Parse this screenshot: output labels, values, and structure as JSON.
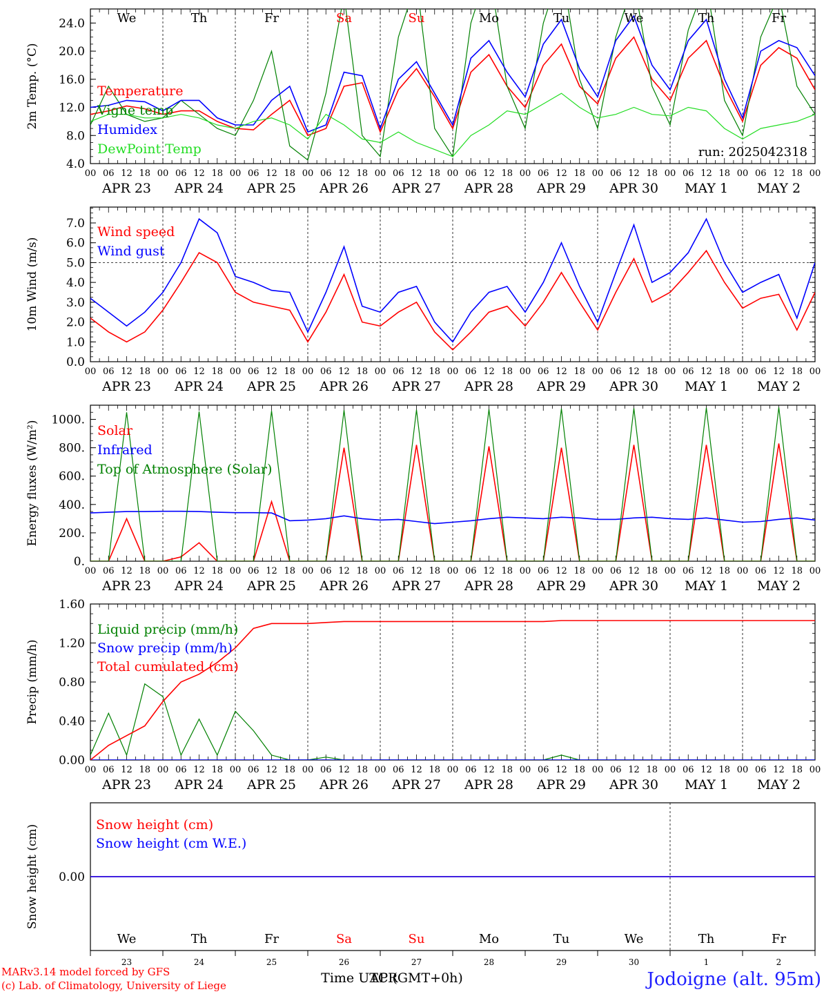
{
  "run_label": "run: 2025042318",
  "days_top": [
    "We",
    "Th",
    "Fr",
    "Sa",
    "Su",
    "Mo",
    "Tu",
    "We",
    "Th",
    "Fr"
  ],
  "day_colors": [
    "#000000",
    "#000000",
    "#000000",
    "#ff0000",
    "#ff0000",
    "#000000",
    "#000000",
    "#000000",
    "#000000",
    "#000000"
  ],
  "hour_ticks": [
    "00",
    "06",
    "12",
    "18"
  ],
  "hour_end": "00",
  "date_labels": [
    "APR 23",
    "APR 24",
    "APR 25",
    "APR 26",
    "APR 27",
    "APR 28",
    "APR 29",
    "APR 30",
    "MAY  1",
    "MAY  2"
  ],
  "snow_day_numbers": [
    "23",
    "24",
    "25",
    "26",
    "27",
    "28",
    "29",
    "30",
    "1",
    "2"
  ],
  "x_axis_label": "Time UTC (GMT+0h)",
  "x_axis_overlay": "APR",
  "footer": {
    "line1": "MARv3.14 model forced by GFS",
    "line2": "(c) Lab. of Climatology, University of Liege",
    "location": "Jodoigne (alt. 95m)"
  },
  "colors": {
    "red": "#ff0000",
    "blue": "#0000ff",
    "green": "#008000",
    "lime": "#22dd22"
  },
  "chart_data": [
    {
      "type": "line",
      "ylabel": "2m Temp. (°C)",
      "ylim": [
        4,
        26
      ],
      "yticks": [
        "4.0",
        "8.0",
        "12.0",
        "16.0",
        "20.0",
        "24.0"
      ],
      "x": [
        0,
        6,
        12,
        18,
        24,
        30,
        36,
        42,
        48,
        54,
        60,
        66,
        72,
        78,
        84,
        90,
        96,
        102,
        108,
        114,
        120,
        126,
        132,
        138,
        144,
        150,
        156,
        162,
        168,
        174,
        180,
        186,
        192,
        198,
        204,
        210,
        216,
        222,
        228,
        234,
        240
      ],
      "series": [
        {
          "name": "Temperature",
          "color": "#ff0000",
          "values": [
            11.0,
            11.5,
            12.2,
            11.8,
            11.0,
            11.5,
            11.5,
            10.0,
            9.0,
            8.8,
            11.0,
            13.0,
            8.0,
            9.0,
            15.0,
            15.5,
            8.5,
            14.5,
            17.5,
            13.5,
            9.0,
            17.0,
            19.5,
            15.0,
            12.0,
            18.0,
            21.0,
            15.0,
            12.5,
            19.0,
            22.0,
            16.0,
            13.0,
            19.0,
            21.5,
            15.0,
            10.0,
            18.0,
            20.5,
            19.0,
            14.5
          ]
        },
        {
          "name": "Vigne temp",
          "color": "#008000",
          "values": [
            9.5,
            15.0,
            11.0,
            10.0,
            10.5,
            13.0,
            11.0,
            9.0,
            8.0,
            13.0,
            20.0,
            6.5,
            4.5,
            14.0,
            28.0,
            8.0,
            5.0,
            22.0,
            30.0,
            9.0,
            5.0,
            24.0,
            32.0,
            15.0,
            9.0,
            24.0,
            32.0,
            16.0,
            9.0,
            22.0,
            30.0,
            15.0,
            9.5,
            23.0,
            30.0,
            13.0,
            8.0,
            22.0,
            28.0,
            15.0,
            11.0
          ]
        },
        {
          "name": "Humidex",
          "color": "#0000ff",
          "values": [
            12.0,
            12.3,
            13.0,
            12.8,
            11.5,
            13.0,
            13.0,
            10.5,
            9.5,
            9.5,
            13.0,
            15.0,
            8.5,
            9.5,
            17.0,
            16.5,
            9.0,
            16.0,
            18.5,
            14.0,
            9.5,
            19.0,
            21.5,
            17.0,
            13.5,
            21.0,
            24.5,
            17.5,
            13.5,
            21.5,
            25.0,
            18.0,
            14.5,
            21.5,
            24.5,
            16.0,
            10.5,
            20.0,
            21.5,
            20.5,
            16.5
          ]
        },
        {
          "name": "DewPoint Temp",
          "color": "#22dd22",
          "values": [
            10.0,
            11.0,
            11.0,
            10.5,
            10.5,
            11.0,
            10.5,
            9.5,
            9.0,
            10.0,
            10.5,
            9.5,
            7.5,
            11.0,
            9.5,
            7.5,
            7.0,
            8.5,
            7.0,
            6.0,
            5.0,
            8.0,
            9.5,
            11.5,
            11.0,
            12.5,
            14.0,
            12.0,
            10.5,
            11.0,
            12.0,
            11.0,
            10.8,
            12.0,
            11.5,
            9.0,
            7.5,
            9.0,
            9.5,
            10.0,
            11.0
          ]
        }
      ]
    },
    {
      "type": "line",
      "ylabel": "10m Wind (m/s)",
      "ylim": [
        0,
        7.8
      ],
      "yticks": [
        "0.0",
        "1.0",
        "2.0",
        "3.0",
        "4.0",
        "5.0",
        "6.0",
        "7.0"
      ],
      "reference_line": 5.0,
      "x": [
        0,
        6,
        12,
        18,
        24,
        30,
        36,
        42,
        48,
        54,
        60,
        66,
        72,
        78,
        84,
        90,
        96,
        102,
        108,
        114,
        120,
        126,
        132,
        138,
        144,
        150,
        156,
        162,
        168,
        174,
        180,
        186,
        192,
        198,
        204,
        210,
        216,
        222,
        228,
        234,
        240
      ],
      "series": [
        {
          "name": "Wind speed",
          "color": "#ff0000",
          "values": [
            2.2,
            1.5,
            1.0,
            1.5,
            2.6,
            4.0,
            5.5,
            5.0,
            3.5,
            3.0,
            2.8,
            2.6,
            1.0,
            2.5,
            4.4,
            2.0,
            1.8,
            2.5,
            3.0,
            1.5,
            0.6,
            1.5,
            2.5,
            2.8,
            1.8,
            3.0,
            4.5,
            3.0,
            1.6,
            3.5,
            5.2,
            3.0,
            3.5,
            4.5,
            5.6,
            4.0,
            2.7,
            3.2,
            3.4,
            1.6,
            3.5
          ]
        },
        {
          "name": "Wind gust",
          "color": "#0000ff",
          "values": [
            3.2,
            2.5,
            1.8,
            2.5,
            3.5,
            5.0,
            7.2,
            6.5,
            4.3,
            4.0,
            3.6,
            3.5,
            1.5,
            3.5,
            5.8,
            2.8,
            2.5,
            3.5,
            3.8,
            2.0,
            1.0,
            2.5,
            3.5,
            3.8,
            2.5,
            4.0,
            6.0,
            3.8,
            2.0,
            4.5,
            6.9,
            4.0,
            4.5,
            5.5,
            7.2,
            5.0,
            3.5,
            4.0,
            4.4,
            2.2,
            5.0
          ]
        }
      ]
    },
    {
      "type": "line",
      "ylabel": "Energy fluxes (W/m²)",
      "ylim": [
        0,
        1100
      ],
      "yticks": [
        "0.",
        "200.",
        "400.",
        "600.",
        "800.",
        "1000."
      ],
      "x": [
        0,
        6,
        12,
        18,
        24,
        30,
        36,
        42,
        48,
        54,
        60,
        66,
        72,
        78,
        84,
        90,
        96,
        102,
        108,
        114,
        120,
        126,
        132,
        138,
        144,
        150,
        156,
        162,
        168,
        174,
        180,
        186,
        192,
        198,
        204,
        210,
        216,
        222,
        228,
        234,
        240
      ],
      "series": [
        {
          "name": "Solar",
          "color": "#ff0000",
          "values": [
            0,
            0,
            300,
            0,
            0,
            30,
            130,
            0,
            0,
            0,
            420,
            0,
            0,
            0,
            800,
            0,
            0,
            0,
            820,
            0,
            0,
            0,
            810,
            0,
            0,
            0,
            800,
            0,
            0,
            0,
            820,
            0,
            0,
            0,
            820,
            0,
            0,
            0,
            830,
            0,
            0
          ]
        },
        {
          "name": "Infrared",
          "color": "#0000ff",
          "values": [
            340,
            345,
            350,
            350,
            352,
            352,
            350,
            345,
            342,
            342,
            340,
            285,
            290,
            300,
            320,
            300,
            290,
            295,
            280,
            265,
            275,
            285,
            300,
            310,
            305,
            300,
            310,
            305,
            295,
            295,
            305,
            310,
            300,
            295,
            305,
            290,
            275,
            280,
            295,
            305,
            290
          ]
        },
        {
          "name": "Top of Atmosphere (Solar)",
          "color": "#008000",
          "values": [
            0,
            0,
            1050,
            0,
            0,
            0,
            1055,
            0,
            0,
            0,
            1060,
            0,
            0,
            0,
            1065,
            0,
            0,
            0,
            1068,
            0,
            0,
            0,
            1072,
            0,
            0,
            0,
            1076,
            0,
            0,
            0,
            1078,
            0,
            0,
            0,
            1082,
            0,
            0,
            0,
            1085,
            0,
            0
          ]
        }
      ]
    },
    {
      "type": "line",
      "ylabel": "Precip (mm/h)",
      "ylim": [
        0,
        1.6
      ],
      "yticks": [
        "0.00",
        "0.40",
        "0.80",
        "1.20",
        "1.60"
      ],
      "x": [
        0,
        6,
        12,
        18,
        24,
        30,
        36,
        42,
        48,
        54,
        60,
        66,
        72,
        78,
        84,
        90,
        96,
        102,
        108,
        114,
        120,
        126,
        132,
        138,
        144,
        150,
        156,
        162,
        168,
        174,
        180,
        186,
        192,
        198,
        204,
        210,
        216,
        222,
        228,
        234,
        240
      ],
      "series": [
        {
          "name": "Liquid precip (mm/h)",
          "color": "#008000",
          "values": [
            0.05,
            0.48,
            0.05,
            0.78,
            0.65,
            0.05,
            0.42,
            0.05,
            0.5,
            0.3,
            0.05,
            0.0,
            0.0,
            0.03,
            0.0,
            0.0,
            0.0,
            0.0,
            0.0,
            0.0,
            0.0,
            0.0,
            0.0,
            0.0,
            0.0,
            0.0,
            0.05,
            0.0,
            0.0,
            0.0,
            0.0,
            0.0,
            0.0,
            0.0,
            0.0,
            0.0,
            0.0,
            0.0,
            0.0,
            0.0,
            0.0
          ]
        },
        {
          "name": "Snow precip (mm/h)",
          "color": "#0000ff",
          "values": [
            0,
            0,
            0,
            0,
            0,
            0,
            0,
            0,
            0,
            0,
            0,
            0,
            0,
            0,
            0,
            0,
            0,
            0,
            0,
            0,
            0,
            0,
            0,
            0,
            0,
            0,
            0,
            0,
            0,
            0,
            0,
            0,
            0,
            0,
            0,
            0,
            0,
            0,
            0,
            0,
            0
          ]
        },
        {
          "name": "Total cumulated (cm)",
          "color": "#ff0000",
          "values": [
            0.0,
            0.15,
            0.25,
            0.35,
            0.6,
            0.8,
            0.88,
            1.0,
            1.15,
            1.35,
            1.4,
            1.4,
            1.4,
            1.41,
            1.42,
            1.42,
            1.42,
            1.42,
            1.42,
            1.42,
            1.42,
            1.42,
            1.42,
            1.42,
            1.42,
            1.42,
            1.43,
            1.43,
            1.43,
            1.43,
            1.43,
            1.43,
            1.43,
            1.43,
            1.43,
            1.43,
            1.43,
            1.43,
            1.43,
            1.43,
            1.43
          ]
        }
      ]
    },
    {
      "type": "line",
      "ylabel": "Snow height (cm)",
      "ylim": [
        -1,
        1
      ],
      "yticks": [
        "0.00"
      ],
      "x": [
        0,
        240
      ],
      "series": [
        {
          "name": "Snow height (cm)",
          "color": "#ff0000",
          "values": [
            0,
            0
          ]
        },
        {
          "name": "Snow height (cm W.E.)",
          "color": "#0000ff",
          "values": [
            0,
            0
          ]
        }
      ]
    }
  ]
}
